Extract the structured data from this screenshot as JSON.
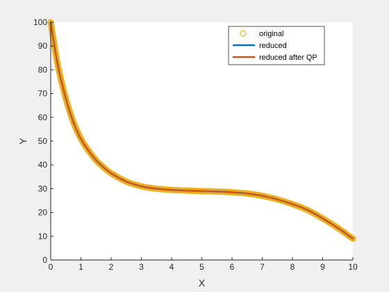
{
  "chart_data": {
    "type": "line",
    "title": "",
    "xlabel": "X",
    "ylabel": "Y",
    "xlim": [
      0,
      10
    ],
    "ylim": [
      0,
      100
    ],
    "xticks": [
      0,
      1,
      2,
      3,
      4,
      5,
      6,
      7,
      8,
      9,
      10
    ],
    "yticks": [
      0,
      10,
      20,
      30,
      40,
      50,
      60,
      70,
      80,
      90,
      100
    ],
    "grid": false,
    "legend_position": "top-right",
    "x": [
      0,
      0.1,
      0.25,
      0.5,
      0.75,
      1,
      1.25,
      1.5,
      1.75,
      2,
      2.5,
      3,
      3.5,
      4,
      4.5,
      5,
      5.5,
      6,
      6.5,
      7,
      7.5,
      8,
      8.5,
      9,
      9.5,
      10
    ],
    "series": [
      {
        "name": "original",
        "style": "markers",
        "color": "#EDB120",
        "values": [
          100,
          92,
          81,
          68,
          58,
          51,
          46,
          42,
          39,
          36.5,
          33,
          31,
          30,
          29.5,
          29.2,
          29,
          28.8,
          28.5,
          28,
          27,
          25.5,
          23.5,
          21,
          17.5,
          13.5,
          9
        ]
      },
      {
        "name": "reduced",
        "style": "line",
        "color": "#0072BD",
        "values": [
          100,
          92,
          81,
          68,
          58,
          51,
          46,
          42,
          39,
          36.5,
          33,
          31,
          30,
          29.5,
          29.2,
          29,
          28.8,
          28.5,
          28,
          27,
          25.5,
          23.5,
          21,
          17.5,
          13.5,
          9
        ]
      },
      {
        "name": "reduced after QP",
        "style": "line",
        "color": "#D95319",
        "values": [
          100,
          92,
          81,
          68,
          58,
          51,
          46,
          42,
          39,
          36.5,
          33,
          31,
          30,
          29.5,
          29.2,
          29,
          28.8,
          28.5,
          28,
          27,
          25.5,
          23.5,
          21,
          17.5,
          13.5,
          9
        ]
      }
    ]
  }
}
